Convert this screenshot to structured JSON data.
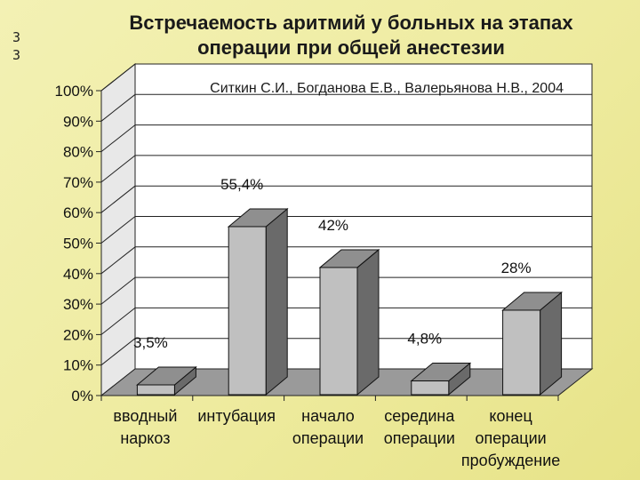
{
  "side_note": [
    "3",
    "3"
  ],
  "chart_data": {
    "type": "bar",
    "title_lines": [
      "Встречаемость аритмий у больных на этапах",
      "операции при общей анестезии"
    ],
    "subtitle": "Ситкин С.И., Богданова Е.В., Валерьянова Н.В., 2004",
    "categories": [
      [
        "вводный",
        "наркоз"
      ],
      [
        "интубация"
      ],
      [
        "начало",
        "операции"
      ],
      [
        "середина",
        "операции"
      ],
      [
        "конец",
        "операции",
        "пробуждение"
      ]
    ],
    "values": [
      3.5,
      55.4,
      42,
      4.8,
      28
    ],
    "data_labels": [
      "3,5%",
      "55,4%",
      "42%",
      "4,8%",
      "28%"
    ],
    "y_ticks": [
      "0%",
      "10%",
      "20%",
      "30%",
      "40%",
      "50%",
      "60%",
      "70%",
      "80%",
      "90%",
      "100%"
    ],
    "ylim": [
      0,
      100
    ],
    "grid": true,
    "colors": {
      "bar_front": "#c0c0c0",
      "bar_top": "#8f8f8f",
      "bar_side": "#6a6a6a",
      "wall": "#ffffff",
      "floor": "#9a9a9a"
    }
  }
}
